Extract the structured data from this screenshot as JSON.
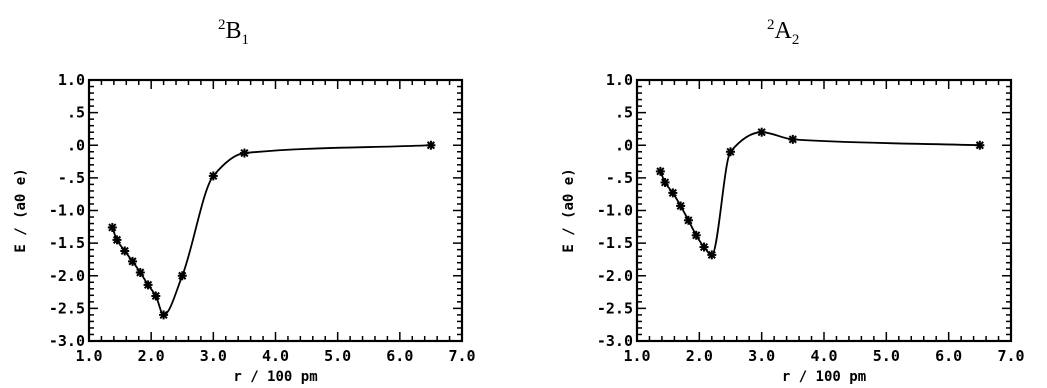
{
  "chart_data": [
    {
      "type": "line",
      "title": "2B1",
      "title_parts": {
        "sup": "2",
        "main": "B",
        "sub": "1"
      },
      "xlabel": "r / 100 pm",
      "ylabel": "E / (a0 e)",
      "xlim": [
        1.0,
        7.0
      ],
      "ylim": [
        -3.0,
        1.0
      ],
      "xticks": [
        "1.0",
        "2.0",
        "3.0",
        "4.0",
        "5.0",
        "6.0",
        "7.0"
      ],
      "yticks": [
        "1.0",
        ".5",
        ".0",
        "-.5",
        "-1.0",
        "-1.5",
        "-2.0",
        "-2.5",
        "-3.0"
      ],
      "grid": false,
      "series": [
        {
          "x": [
            1.375,
            1.45,
            1.575,
            1.7,
            1.825,
            1.95,
            2.075,
            2.2,
            2.5,
            3.0,
            3.5,
            6.5
          ],
          "y": [
            -1.26,
            -1.45,
            -1.62,
            -1.78,
            -1.95,
            -2.14,
            -2.31,
            -2.6,
            -2.0,
            -0.47,
            -0.12,
            0.0
          ],
          "marker": "asterisk",
          "color": "#000000"
        }
      ]
    },
    {
      "type": "line",
      "title": "2A2",
      "title_parts": {
        "sup": "2",
        "main": "A",
        "sub": "2"
      },
      "xlabel": "r / 100 pm",
      "ylabel": "E / (a0 e)",
      "xlim": [
        1.0,
        7.0
      ],
      "ylim": [
        -3.0,
        1.0
      ],
      "xticks": [
        "1.0",
        "2.0",
        "3.0",
        "4.0",
        "5.0",
        "6.0",
        "7.0"
      ],
      "yticks": [
        "1.0",
        ".5",
        ".0",
        "-.5",
        "-1.0",
        "-1.5",
        "-2.0",
        "-2.5",
        "-3.0"
      ],
      "grid": false,
      "series": [
        {
          "x": [
            1.375,
            1.45,
            1.575,
            1.7,
            1.825,
            1.95,
            2.075,
            2.2,
            2.5,
            3.0,
            3.5,
            6.5
          ],
          "y": [
            -0.4,
            -0.57,
            -0.73,
            -0.93,
            -1.15,
            -1.38,
            -1.56,
            -1.68,
            -0.1,
            0.2,
            0.09,
            0.0
          ],
          "marker": "asterisk",
          "color": "#000000"
        }
      ]
    }
  ]
}
